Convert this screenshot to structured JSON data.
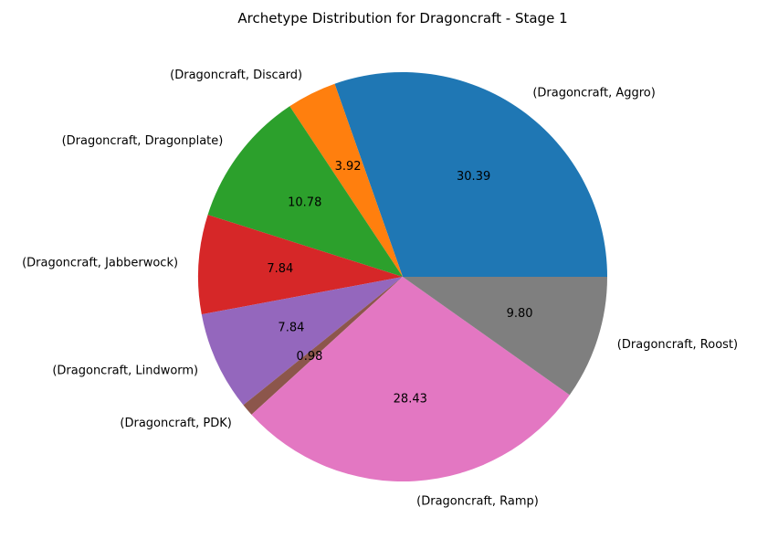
{
  "chart_data": {
    "type": "pie",
    "title": "Archetype Distribution for Dragoncraft - Stage 1",
    "start_angle_deg": 0,
    "direction": "counterclockwise",
    "slices": [
      {
        "label": "(Dragoncraft, Aggro)",
        "value": 30.39,
        "pct_text": "30.39",
        "color": "#1f77b4"
      },
      {
        "label": "(Dragoncraft, Discard)",
        "value": 3.92,
        "pct_text": "3.92",
        "color": "#ff7f0e"
      },
      {
        "label": "(Dragoncraft, Dragonplate)",
        "value": 10.78,
        "pct_text": "10.78",
        "color": "#2ca02c"
      },
      {
        "label": "(Dragoncraft, Jabberwock)",
        "value": 7.84,
        "pct_text": "7.84",
        "color": "#d62728"
      },
      {
        "label": "(Dragoncraft, Lindworm)",
        "value": 7.84,
        "pct_text": "7.84",
        "color": "#9467bd"
      },
      {
        "label": "(Dragoncraft, PDK)",
        "value": 0.98,
        "pct_text": "0.98",
        "color": "#8c564b"
      },
      {
        "label": "(Dragoncraft, Ramp)",
        "value": 28.43,
        "pct_text": "28.43",
        "color": "#e377c2"
      },
      {
        "label": "(Dragoncraft, Roost)",
        "value": 9.8,
        "pct_text": "9.80",
        "color": "#7f7f7f"
      }
    ]
  }
}
